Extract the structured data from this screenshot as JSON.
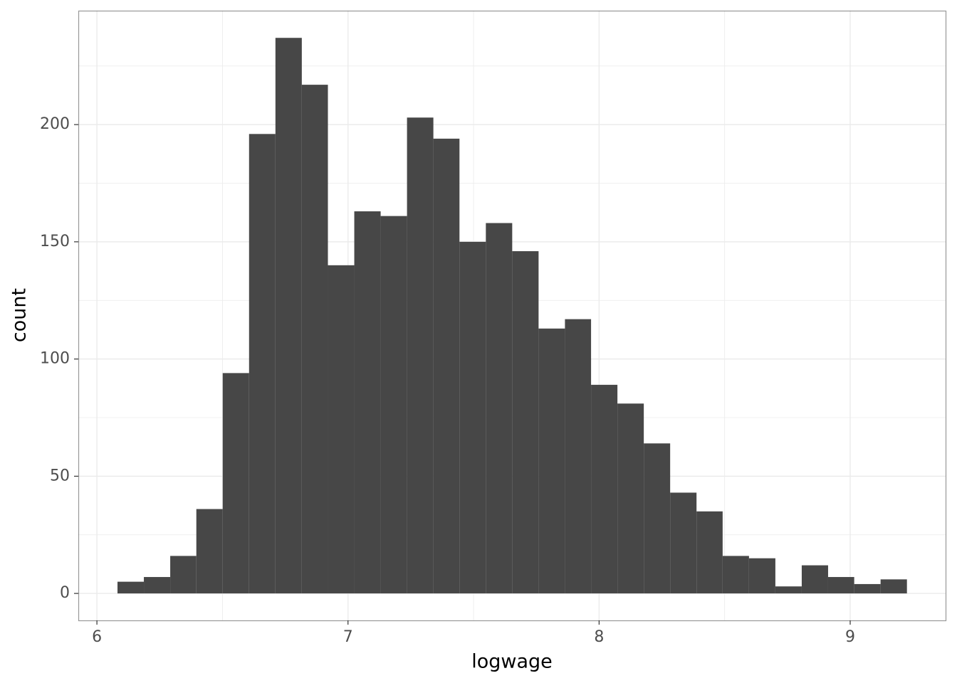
{
  "chart_data": {
    "type": "histogram",
    "x_label": "logwage",
    "y_label": "count",
    "bins": [
      6.082,
      6.187,
      6.292,
      6.396,
      6.501,
      6.606,
      6.711,
      6.816,
      6.92,
      7.025,
      7.13,
      7.235,
      7.34,
      7.444,
      7.549,
      7.654,
      7.759,
      7.864,
      7.968,
      8.073,
      8.178,
      8.283,
      8.388,
      8.492,
      8.597,
      8.702,
      8.807,
      8.912,
      9.016,
      9.121,
      9.226
    ],
    "values": [
      5,
      7,
      16,
      36,
      94,
      196,
      237,
      217,
      140,
      163,
      161,
      203,
      194,
      150,
      158,
      146,
      113,
      117,
      89,
      81,
      64,
      43,
      35,
      16,
      15,
      3,
      12,
      7,
      4,
      6
    ],
    "color": "#474747",
    "xlim": [
      5.926,
      9.38
    ],
    "ylim": [
      -11.5,
      248.6
    ],
    "xticks": [
      6,
      7,
      8,
      9
    ],
    "yticks": [
      0,
      50,
      100,
      150,
      200
    ],
    "xminor": [
      6.5,
      7.5,
      8.5
    ],
    "yminor": [
      25,
      75,
      125,
      175,
      225
    ],
    "grid": true
  }
}
